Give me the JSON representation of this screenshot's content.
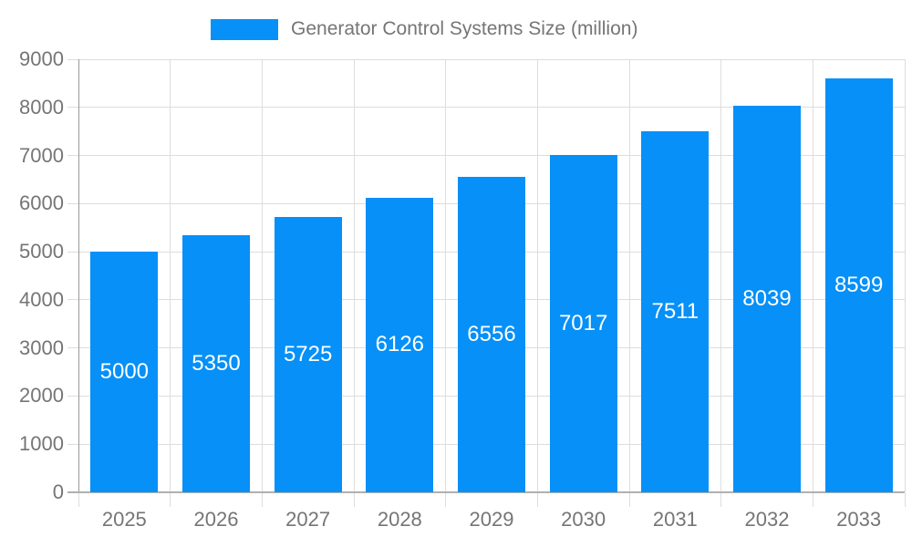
{
  "legend": {
    "label": "Generator Control Systems Size (million)",
    "marker_color": "#0690F8"
  },
  "chart_data": {
    "type": "bar",
    "title": "Generator Control Systems Size (million)",
    "categories": [
      "2025",
      "2026",
      "2027",
      "2028",
      "2029",
      "2030",
      "2031",
      "2032",
      "2033"
    ],
    "values": [
      5000,
      5350,
      5725,
      6126,
      6556,
      7017,
      7511,
      8039,
      8599
    ],
    "xlabel": "",
    "ylabel": "",
    "ylim": [
      0,
      9000
    ],
    "ytick_step": 1000,
    "yticks": [
      0,
      1000,
      2000,
      3000,
      4000,
      5000,
      6000,
      7000,
      8000,
      9000
    ],
    "grid": true,
    "legend_position": "top",
    "bar_labels_inside": true,
    "colors": {
      "bar": "#0690F8",
      "bar_label": "#FFFFFF",
      "axis_text": "#757575",
      "y_axis_line": "#999999",
      "baseline": "#B0B0B0",
      "gridline": "#DDDDDD",
      "background": "#FFFFFF"
    }
  }
}
